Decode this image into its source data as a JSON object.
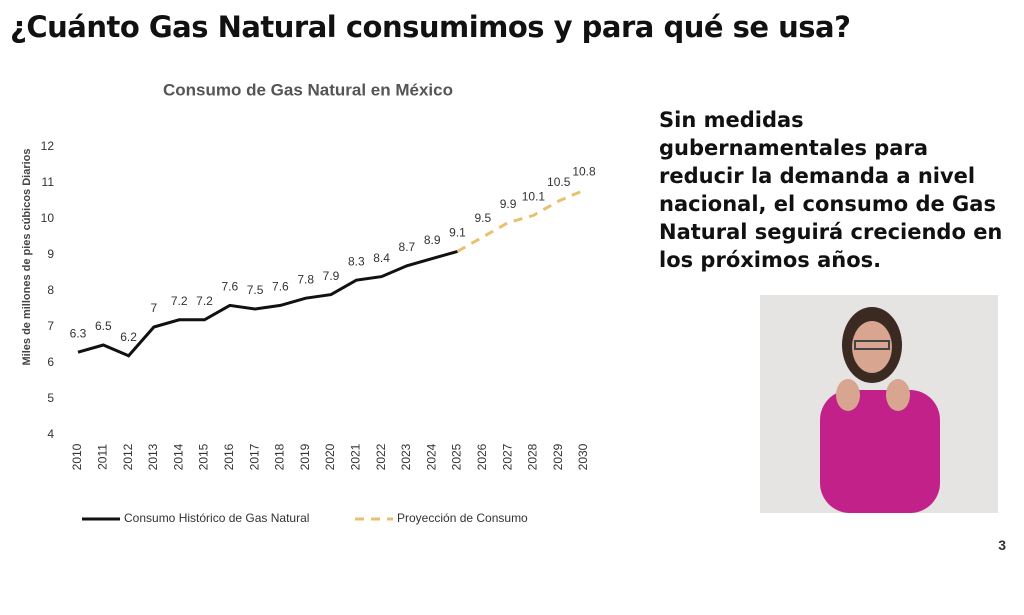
{
  "header": {
    "title": "¿Cuánto Gas Natural consumimos y para qué se usa?"
  },
  "side_text": "Sin medidas gubernamentales para reducir la demanda a nivel nacional, el consumo de Gas Natural seguirá creciendo en los próximos años.",
  "page_number": "3",
  "chart_data": {
    "type": "line",
    "title": "Consumo de Gas Natural en México",
    "y_label": "Miles de millones de pies cúbicos Diarios",
    "categories": [
      "2010",
      "2011",
      "2012",
      "2013",
      "2014",
      "2015",
      "2016",
      "2017",
      "2018",
      "2019",
      "2020",
      "2021",
      "2022",
      "2023",
      "2024",
      "2025",
      "2026",
      "2027",
      "2028",
      "2029",
      "2030"
    ],
    "series": [
      {
        "name": "Consumo Histórico de Gas Natural",
        "color": "#111111",
        "dashed": false,
        "values": [
          6.3,
          6.5,
          6.2,
          7,
          7.2,
          7.2,
          7.6,
          7.5,
          7.6,
          7.8,
          7.9,
          8.3,
          8.4,
          8.7,
          8.9,
          9.1,
          null,
          null,
          null,
          null,
          null
        ]
      },
      {
        "name": "Proyección de Consumo",
        "color": "#e8c170",
        "dashed": true,
        "values": [
          null,
          null,
          null,
          null,
          null,
          null,
          null,
          null,
          null,
          null,
          null,
          null,
          null,
          null,
          null,
          9.1,
          9.5,
          9.9,
          10.1,
          10.5,
          10.8
        ]
      }
    ],
    "ylim": [
      4,
      12
    ],
    "yticks": [
      4,
      5,
      6,
      7,
      8,
      9,
      10,
      11,
      12
    ],
    "grid": false
  }
}
